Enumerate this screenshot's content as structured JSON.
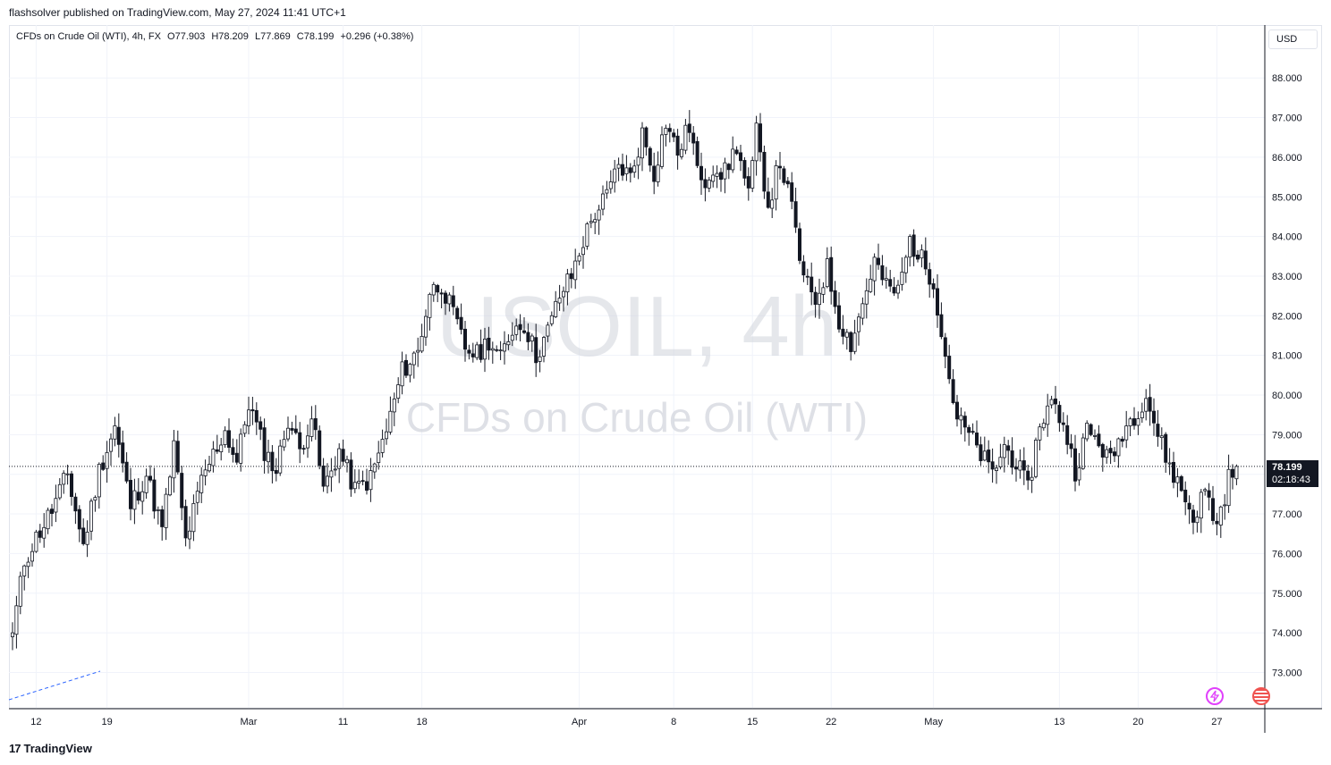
{
  "header": {
    "publisher_line": "flashsolver published on TradingView.com, May 27, 2024 11:41 UTC+1"
  },
  "legend": {
    "instrument": "CFDs on Crude Oil (WTI), 4h, FX",
    "open": "O77.903",
    "high": "H78.209",
    "low": "L77.869",
    "close": "C78.199",
    "change": "+0.296 (+0.38%)"
  },
  "currency": "USD",
  "watermark": {
    "symbol": "USOIL, 4h",
    "name": "CFDs on Crude Oil (WTI)"
  },
  "last_price": {
    "value": "78.199",
    "countdown": "02:18:43"
  },
  "footer": {
    "brand": "TradingView"
  },
  "colors": {
    "candle_up": "#ffffff",
    "candle_down": "#131722",
    "outline": "#131722",
    "grid": "#f0f3fa",
    "drawing_line": "#2962ff"
  },
  "chart_data": {
    "type": "candlestick",
    "title": "CFDs on Crude Oil (WTI), 4h, FX",
    "y_ticks": [
      "88.000",
      "87.000",
      "86.000",
      "85.000",
      "84.000",
      "83.000",
      "82.000",
      "81.000",
      "80.000",
      "79.000",
      "78.000",
      "77.000",
      "76.000",
      "75.000",
      "74.000",
      "73.000"
    ],
    "ylim": [
      72.1,
      88.6
    ],
    "x_ticks": [
      "12",
      "19",
      "Mar",
      "11",
      "18",
      "Apr",
      "8",
      "15",
      "22",
      "May",
      "13",
      "20",
      "27"
    ],
    "x_tick_index": [
      6,
      24,
      60,
      84,
      104,
      144,
      168,
      188,
      208,
      234,
      266,
      286,
      306
    ],
    "grid": true,
    "close_anchors": [
      [
        0,
        74.0
      ],
      [
        3,
        75.8
      ],
      [
        6,
        76.4
      ],
      [
        10,
        77.1
      ],
      [
        14,
        78.0
      ],
      [
        18,
        76.2
      ],
      [
        22,
        78.1
      ],
      [
        26,
        79.2
      ],
      [
        30,
        77.2
      ],
      [
        34,
        78.0
      ],
      [
        38,
        76.6
      ],
      [
        41,
        78.7
      ],
      [
        44,
        76.3
      ],
      [
        48,
        77.8
      ],
      [
        51,
        78.5
      ],
      [
        54,
        79.1
      ],
      [
        57,
        78.3
      ],
      [
        60,
        79.8
      ],
      [
        64,
        78.6
      ],
      [
        67,
        78.1
      ],
      [
        70,
        79.4
      ],
      [
        73,
        78.6
      ],
      [
        76,
        79.5
      ],
      [
        79,
        77.6
      ],
      [
        83,
        78.6
      ],
      [
        87,
        77.6
      ],
      [
        91,
        77.9
      ],
      [
        95,
        79.1
      ],
      [
        99,
        80.6
      ],
      [
        103,
        81.1
      ],
      [
        106,
        82.6
      ],
      [
        109,
        82.8
      ],
      [
        112,
        82.0
      ],
      [
        115,
        81.2
      ],
      [
        118,
        81.0
      ],
      [
        121,
        81.4
      ],
      [
        124,
        80.9
      ],
      [
        127,
        81.7
      ],
      [
        130,
        81.8
      ],
      [
        133,
        81.0
      ],
      [
        136,
        81.6
      ],
      [
        139,
        82.5
      ],
      [
        142,
        83.0
      ],
      [
        145,
        83.9
      ],
      [
        148,
        84.6
      ],
      [
        151,
        85.0
      ],
      [
        154,
        85.8
      ],
      [
        157,
        85.5
      ],
      [
        160,
        86.6
      ],
      [
        163,
        85.6
      ],
      [
        166,
        86.9
      ],
      [
        169,
        86.1
      ],
      [
        172,
        86.8
      ],
      [
        175,
        85.2
      ],
      [
        178,
        85.8
      ],
      [
        181,
        85.6
      ],
      [
        184,
        86.3
      ],
      [
        187,
        85.0
      ],
      [
        189,
        86.6
      ],
      [
        192,
        84.8
      ],
      [
        195,
        85.9
      ],
      [
        198,
        84.7
      ],
      [
        201,
        82.9
      ],
      [
        204,
        82.4
      ],
      [
        207,
        83.2
      ],
      [
        210,
        81.9
      ],
      [
        213,
        81.3
      ],
      [
        216,
        82.3
      ],
      [
        219,
        83.4
      ],
      [
        222,
        82.7
      ],
      [
        225,
        82.6
      ],
      [
        228,
        83.9
      ],
      [
        231,
        83.4
      ],
      [
        234,
        82.9
      ],
      [
        237,
        81.0
      ],
      [
        240,
        79.4
      ],
      [
        243,
        79.0
      ],
      [
        246,
        78.5
      ],
      [
        249,
        78.0
      ],
      [
        252,
        78.7
      ],
      [
        255,
        78.3
      ],
      [
        258,
        77.6
      ],
      [
        261,
        79.3
      ],
      [
        264,
        79.8
      ],
      [
        267,
        79.3
      ],
      [
        270,
        78.1
      ],
      [
        273,
        79.1
      ],
      [
        276,
        78.8
      ],
      [
        279,
        78.3
      ],
      [
        282,
        79.1
      ],
      [
        285,
        79.5
      ],
      [
        288,
        80.0
      ],
      [
        291,
        79.0
      ],
      [
        294,
        78.2
      ],
      [
        297,
        77.6
      ],
      [
        300,
        76.9
      ],
      [
        303,
        77.6
      ],
      [
        306,
        76.7
      ],
      [
        309,
        77.9
      ],
      [
        311,
        78.2
      ]
    ]
  }
}
